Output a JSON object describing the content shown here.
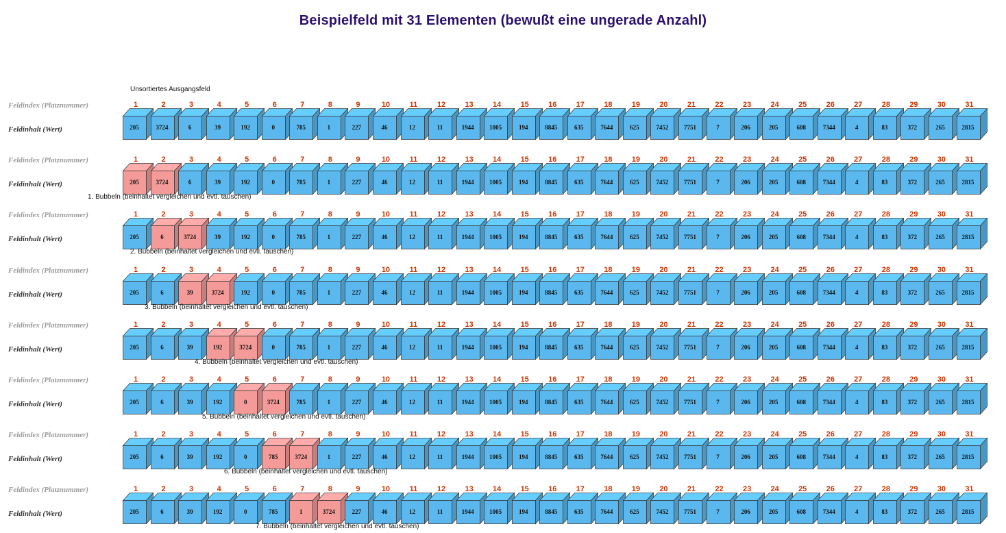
{
  "title": "Beispielfeld mit 31 Elementen (bewußt eine ungerade Anzahl)",
  "colors": {
    "normal": "#5bb8ee",
    "highlight": "#f49a98",
    "index": "#cc3300",
    "title": "#2a0f6e"
  },
  "row_labels": {
    "index": "Feldindex (Platznummer)",
    "value": "Feldinhalt (Wert)"
  },
  "top_caption": "Unsortiertes Ausgangsfeld",
  "indices": [
    "1",
    "2",
    "3",
    "4",
    "5",
    "6",
    "7",
    "8",
    "9",
    "10",
    "11",
    "12",
    "13",
    "14",
    "15",
    "16",
    "17",
    "18",
    "19",
    "20",
    "21",
    "22",
    "23",
    "24",
    "25",
    "26",
    "27",
    "28",
    "29",
    "30",
    "31"
  ],
  "panels": [
    {
      "values": [
        "205",
        "3724",
        "6",
        "39",
        "192",
        "0",
        "785",
        "1",
        "227",
        "46",
        "12",
        "11",
        "1944",
        "1005",
        "194",
        "8845",
        "635",
        "7644",
        "625",
        "7452",
        "7751",
        "7",
        "206",
        "205",
        "608",
        "7344",
        "4",
        "83",
        "372",
        "265",
        "2815"
      ],
      "highlight": [],
      "caption": "Unsortiertes Ausgangsfeld"
    },
    {
      "values": [
        "205",
        "3724",
        "6",
        "39",
        "192",
        "0",
        "785",
        "1",
        "227",
        "46",
        "12",
        "11",
        "1944",
        "1005",
        "194",
        "8845",
        "635",
        "7644",
        "625",
        "7452",
        "7751",
        "7",
        "206",
        "205",
        "608",
        "7344",
        "4",
        "83",
        "372",
        "265",
        "2815"
      ],
      "highlight": [
        1,
        2
      ],
      "caption": "1. Bubbeln (beinhaltet vergleichen und evtl. tauschen)"
    },
    {
      "values": [
        "205",
        "6",
        "3724",
        "39",
        "192",
        "0",
        "785",
        "1",
        "227",
        "46",
        "12",
        "11",
        "1944",
        "1005",
        "194",
        "8845",
        "635",
        "7644",
        "625",
        "7452",
        "7751",
        "7",
        "206",
        "205",
        "608",
        "7344",
        "4",
        "83",
        "372",
        "265",
        "2815"
      ],
      "highlight": [
        2,
        3
      ],
      "caption": "2. Bubbeln  (beinhaltet vergleichen und evtl. tauschen)"
    },
    {
      "values": [
        "205",
        "6",
        "39",
        "3724",
        "192",
        "0",
        "785",
        "1",
        "227",
        "46",
        "12",
        "11",
        "1944",
        "1005",
        "194",
        "8845",
        "635",
        "7644",
        "625",
        "7452",
        "7751",
        "7",
        "206",
        "205",
        "608",
        "7344",
        "4",
        "83",
        "372",
        "265",
        "2815"
      ],
      "highlight": [
        3,
        4
      ],
      "caption": "3. Bubbeln  (beinhaltet vergleichen und evtl. tauschen)"
    },
    {
      "values": [
        "205",
        "6",
        "39",
        "192",
        "3724",
        "0",
        "785",
        "1",
        "227",
        "46",
        "12",
        "11",
        "1944",
        "1005",
        "194",
        "8845",
        "635",
        "7644",
        "625",
        "7452",
        "7751",
        "7",
        "206",
        "205",
        "608",
        "7344",
        "4",
        "83",
        "372",
        "265",
        "2815"
      ],
      "highlight": [
        4,
        5
      ],
      "caption": "4. Bubbeln  (beinhaltet vergleichen und evtl. tauschen)"
    },
    {
      "values": [
        "205",
        "6",
        "39",
        "192",
        "0",
        "3724",
        "785",
        "1",
        "227",
        "46",
        "12",
        "11",
        "1944",
        "1005",
        "194",
        "8845",
        "635",
        "7644",
        "625",
        "7452",
        "7751",
        "7",
        "206",
        "205",
        "608",
        "7344",
        "4",
        "83",
        "372",
        "265",
        "2815"
      ],
      "highlight": [
        5,
        6
      ],
      "caption": "5. Bubbeln  (beinhaltet vergleichen und evtl. tauschen)"
    },
    {
      "values": [
        "205",
        "6",
        "39",
        "192",
        "0",
        "785",
        "3724",
        "1",
        "227",
        "46",
        "12",
        "11",
        "1944",
        "1005",
        "194",
        "8845",
        "635",
        "7644",
        "625",
        "7452",
        "7751",
        "7",
        "206",
        "205",
        "608",
        "7344",
        "4",
        "83",
        "372",
        "265",
        "2815"
      ],
      "highlight": [
        6,
        7
      ],
      "caption": "6. Bubbeln  (beinhaltet vergleichen und evtl. tauschen)"
    },
    {
      "values": [
        "205",
        "6",
        "39",
        "192",
        "0",
        "785",
        "1",
        "3724",
        "227",
        "46",
        "12",
        "11",
        "1944",
        "1005",
        "194",
        "8845",
        "635",
        "7644",
        "625",
        "7452",
        "7751",
        "7",
        "206",
        "205",
        "608",
        "7344",
        "4",
        "83",
        "372",
        "265",
        "2815"
      ],
      "highlight": [
        7,
        8
      ],
      "caption": "7. Bubbeln  (beinhaltet vergleichen und evtl. tauschen)"
    }
  ]
}
